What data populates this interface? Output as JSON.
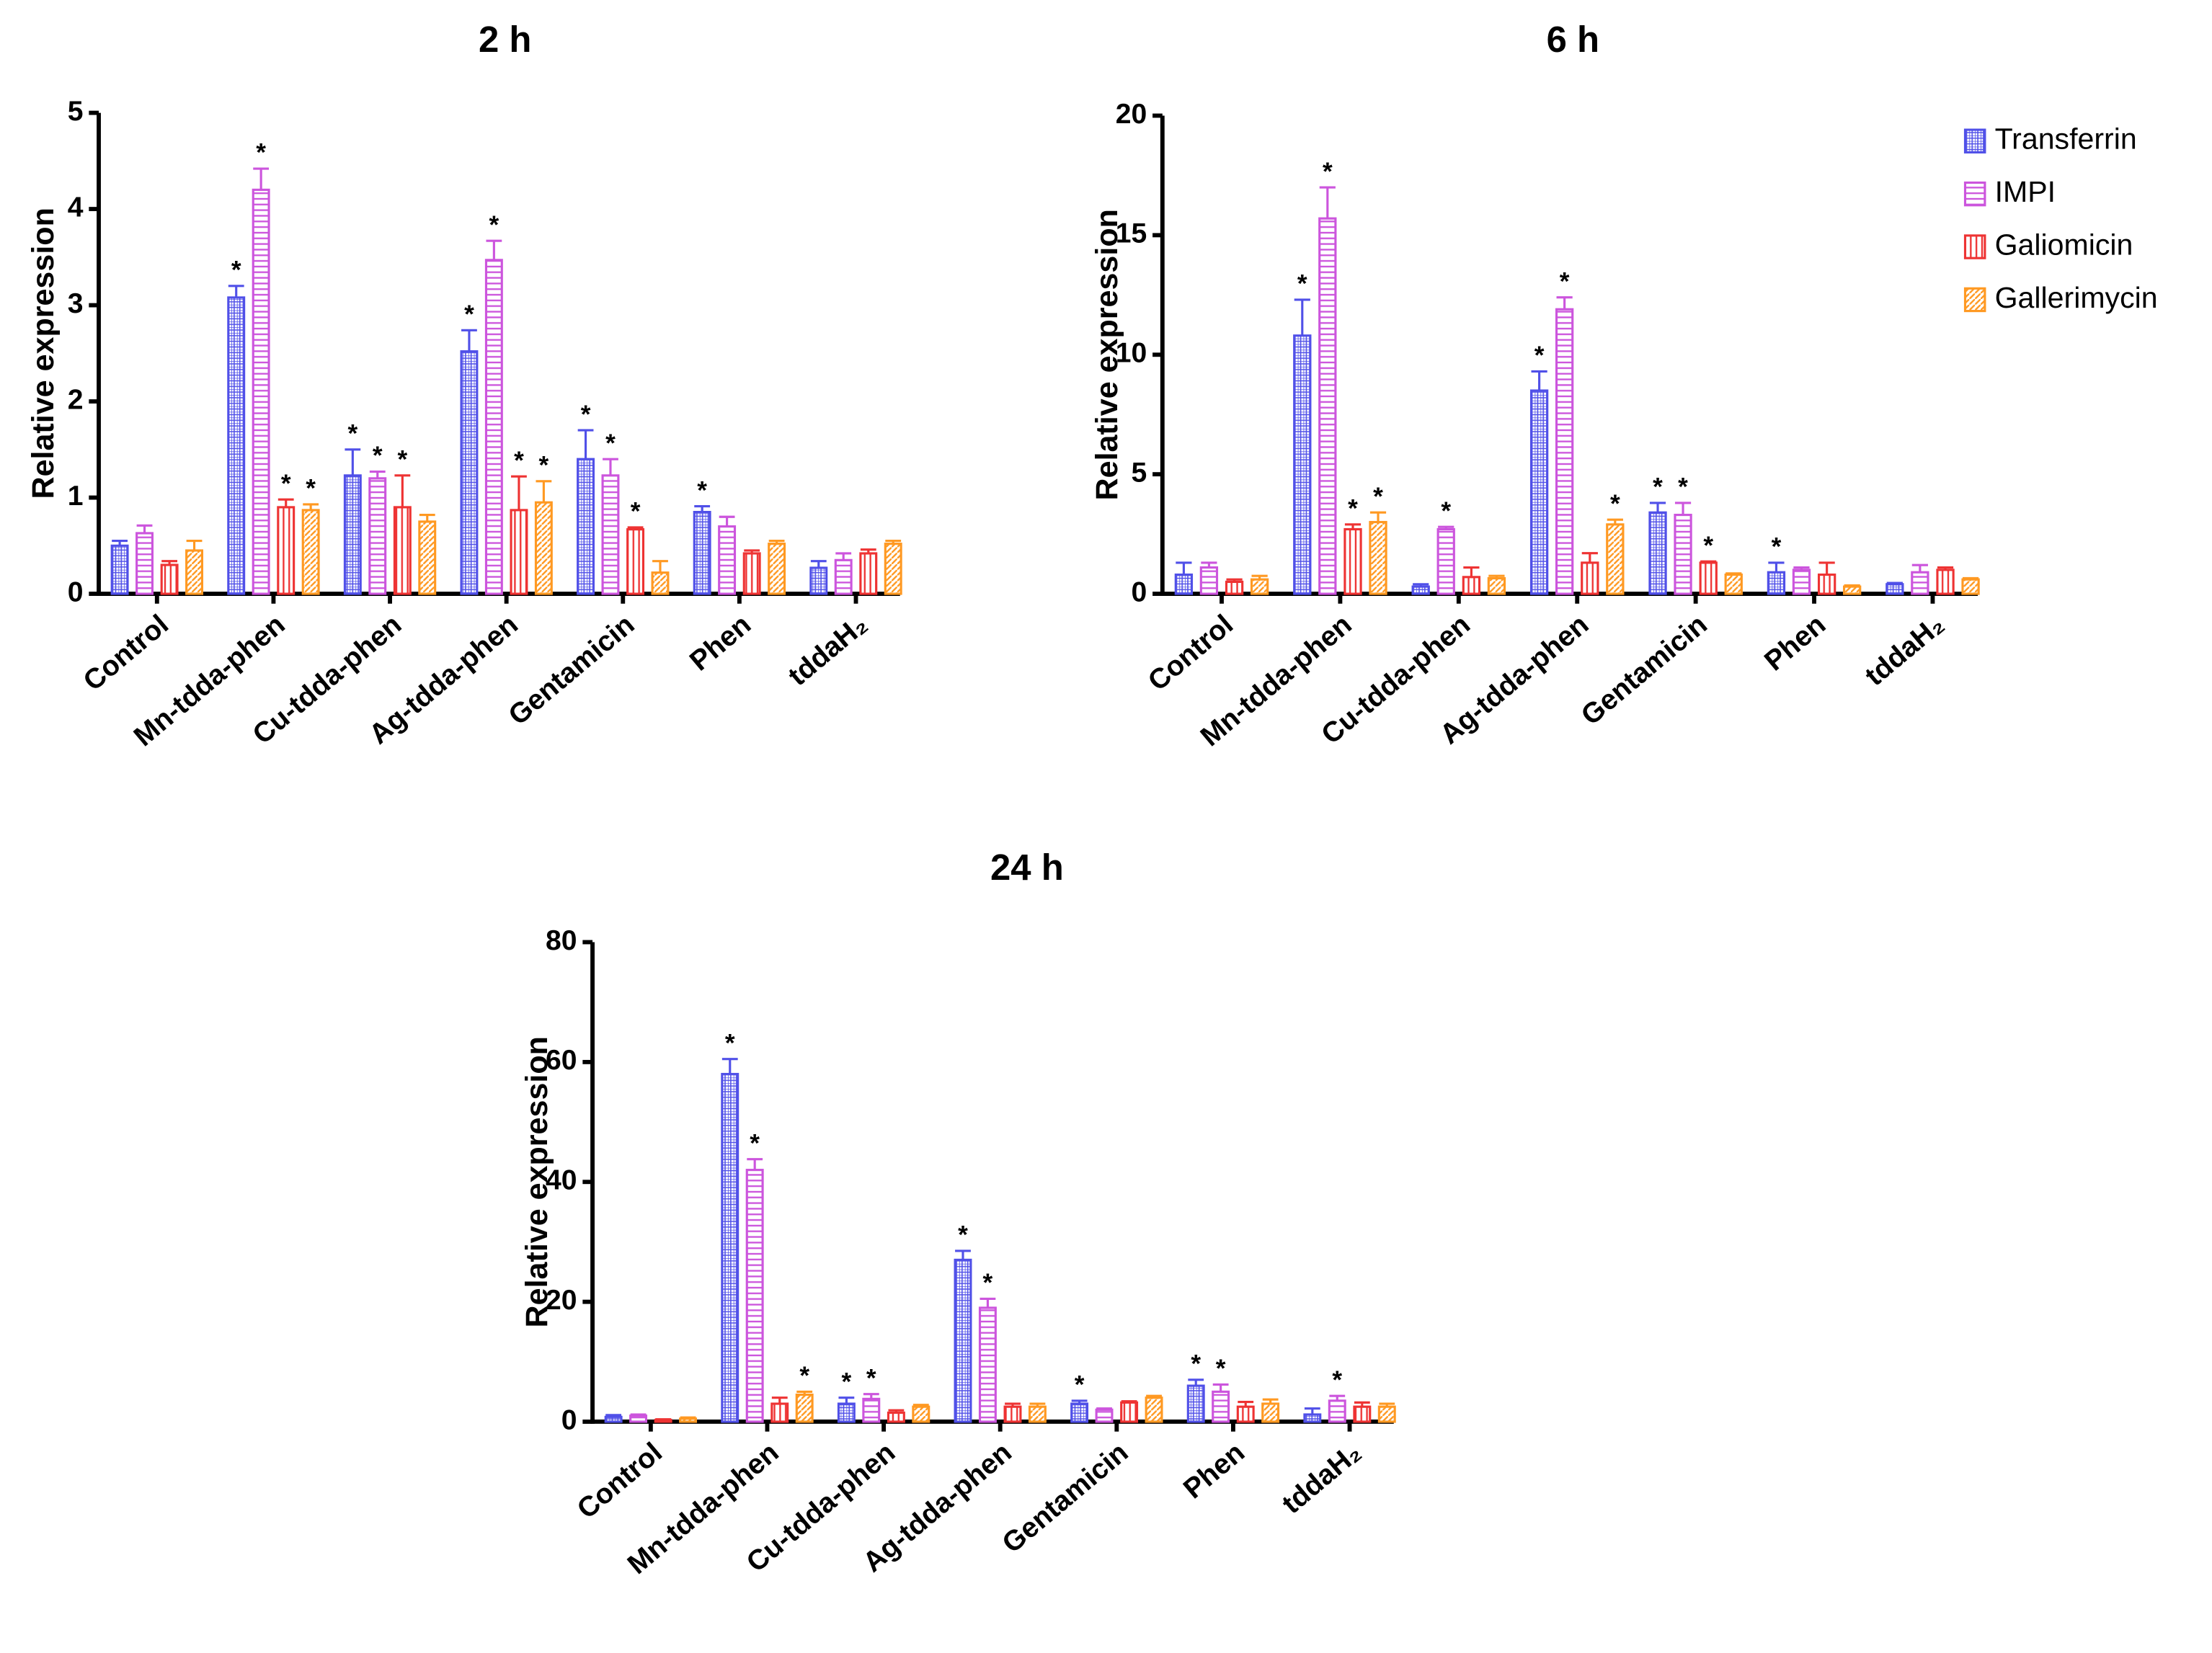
{
  "chart_data": [
    {
      "type": "bar",
      "title": "2 h",
      "y_label": "Relative expression",
      "categories": [
        "Control",
        "Mn-tdda-phen",
        "Cu-tdda-phen",
        "Ag-tdda-phen",
        "Gentamicin",
        "Phen",
        "tddaH₂"
      ],
      "ylim": [
        0,
        5
      ],
      "yticks": [
        0,
        1,
        2,
        3,
        4,
        5
      ],
      "series": [
        {
          "color": "#5050e8",
          "values": [
            0.5,
            3.08,
            1.23,
            2.52,
            1.4,
            0.85,
            0.27
          ],
          "errors": [
            0.05,
            0.12,
            0.27,
            0.22,
            0.3,
            0.06,
            0.07
          ],
          "sig": [
            null,
            "*",
            "*",
            "*",
            "*",
            "*",
            null
          ]
        },
        {
          "color": "#cc55dd",
          "values": [
            0.63,
            4.2,
            1.2,
            3.47,
            1.23,
            0.7,
            0.35
          ],
          "errors": [
            0.08,
            0.22,
            0.07,
            0.2,
            0.17,
            0.1,
            0.07
          ],
          "sig": [
            null,
            "*",
            "*",
            "*",
            "*",
            null,
            null
          ]
        },
        {
          "color": "#ee3333",
          "values": [
            0.3,
            0.9,
            0.9,
            0.87,
            0.67,
            0.42,
            0.42
          ],
          "errors": [
            0.04,
            0.08,
            0.33,
            0.35,
            0.02,
            0.03,
            0.04
          ],
          "sig": [
            null,
            "*",
            "*",
            "*",
            "*",
            null,
            null
          ]
        },
        {
          "color": "#ff9922",
          "values": [
            0.45,
            0.87,
            0.75,
            0.95,
            0.22,
            0.52,
            0.52
          ],
          "errors": [
            0.1,
            0.06,
            0.07,
            0.22,
            0.12,
            0.03,
            0.03
          ],
          "sig": [
            null,
            "*",
            null,
            "*",
            null,
            null,
            null
          ]
        }
      ]
    },
    {
      "type": "bar",
      "title": "6 h",
      "y_label": "Relative expression",
      "categories": [
        "Control",
        "Mn-tdda-phen",
        "Cu-tdda-phen",
        "Ag-tdda-phen",
        "Gentamicin",
        "Phen",
        "tddaH₂"
      ],
      "ylim": [
        0,
        20
      ],
      "yticks": [
        0,
        5,
        10,
        15,
        20
      ],
      "series": [
        {
          "name": "Transferrin",
          "color": "#5050e8",
          "values": [
            0.8,
            10.8,
            0.3,
            8.5,
            3.4,
            0.9,
            0.4
          ],
          "errors": [
            0.5,
            1.5,
            0.1,
            0.8,
            0.4,
            0.4,
            0.05
          ],
          "sig": [
            null,
            "*",
            null,
            "*",
            "*",
            "*",
            null
          ]
        },
        {
          "name": "IMPI",
          "color": "#cc55dd",
          "values": [
            1.1,
            15.7,
            2.7,
            11.9,
            3.3,
            1.0,
            0.9
          ],
          "errors": [
            0.2,
            1.3,
            0.1,
            0.5,
            0.5,
            0.1,
            0.3
          ],
          "sig": [
            null,
            "*",
            "*",
            "*",
            "*",
            null,
            null
          ]
        },
        {
          "name": "Galiomicin",
          "color": "#ee3333",
          "values": [
            0.5,
            2.7,
            0.7,
            1.3,
            1.3,
            0.8,
            1.0
          ],
          "errors": [
            0.1,
            0.2,
            0.4,
            0.4,
            0.05,
            0.5,
            0.1
          ],
          "sig": [
            null,
            "*",
            null,
            null,
            "*",
            null,
            null
          ]
        },
        {
          "name": "Gallerimycin",
          "color": "#ff9922",
          "values": [
            0.6,
            3.0,
            0.65,
            2.9,
            0.8,
            0.3,
            0.6
          ],
          "errors": [
            0.15,
            0.4,
            0.1,
            0.2,
            0.05,
            0.05,
            0.05
          ],
          "sig": [
            null,
            "*",
            null,
            "*",
            null,
            null,
            null
          ]
        }
      ]
    },
    {
      "type": "bar",
      "title": "24 h",
      "y_label": "Relative expression",
      "categories": [
        "Control",
        "Mn-tdda-phen",
        "Cu-tdda-phen",
        "Ag-tdda-phen",
        "Gentamicin",
        "Phen",
        "tddaH₂"
      ],
      "ylim": [
        0,
        80
      ],
      "yticks": [
        0,
        20,
        40,
        60,
        80
      ],
      "series": [
        {
          "color": "#5050e8",
          "values": [
            0.8,
            58,
            3,
            27,
            3,
            6,
            1.2
          ],
          "errors": [
            0.3,
            2.5,
            1,
            1.5,
            0.5,
            1,
            1
          ],
          "sig": [
            null,
            "*",
            "*",
            "*",
            "*",
            "*",
            null
          ]
        },
        {
          "color": "#cc55dd",
          "values": [
            1.0,
            42,
            3.8,
            19,
            2,
            5,
            3.5
          ],
          "errors": [
            0.2,
            1.8,
            0.8,
            1.5,
            0.2,
            1.2,
            0.8
          ],
          "sig": [
            null,
            "*",
            "*",
            "*",
            null,
            "*",
            "*"
          ]
        },
        {
          "color": "#ee3333",
          "values": [
            0.3,
            3,
            1.5,
            2.5,
            3.2,
            2.5,
            2.5
          ],
          "errors": [
            0.1,
            1,
            0.4,
            0.5,
            0.2,
            0.8,
            0.7
          ],
          "sig": [
            null,
            null,
            null,
            null,
            null,
            null,
            null
          ]
        },
        {
          "color": "#ff9922",
          "values": [
            0.5,
            4.5,
            2.5,
            2.5,
            4,
            3,
            2.5
          ],
          "errors": [
            0.2,
            0.5,
            0.3,
            0.5,
            0.3,
            0.7,
            0.5
          ],
          "sig": [
            null,
            "*",
            null,
            null,
            null,
            null,
            null
          ]
        }
      ]
    }
  ]
}
